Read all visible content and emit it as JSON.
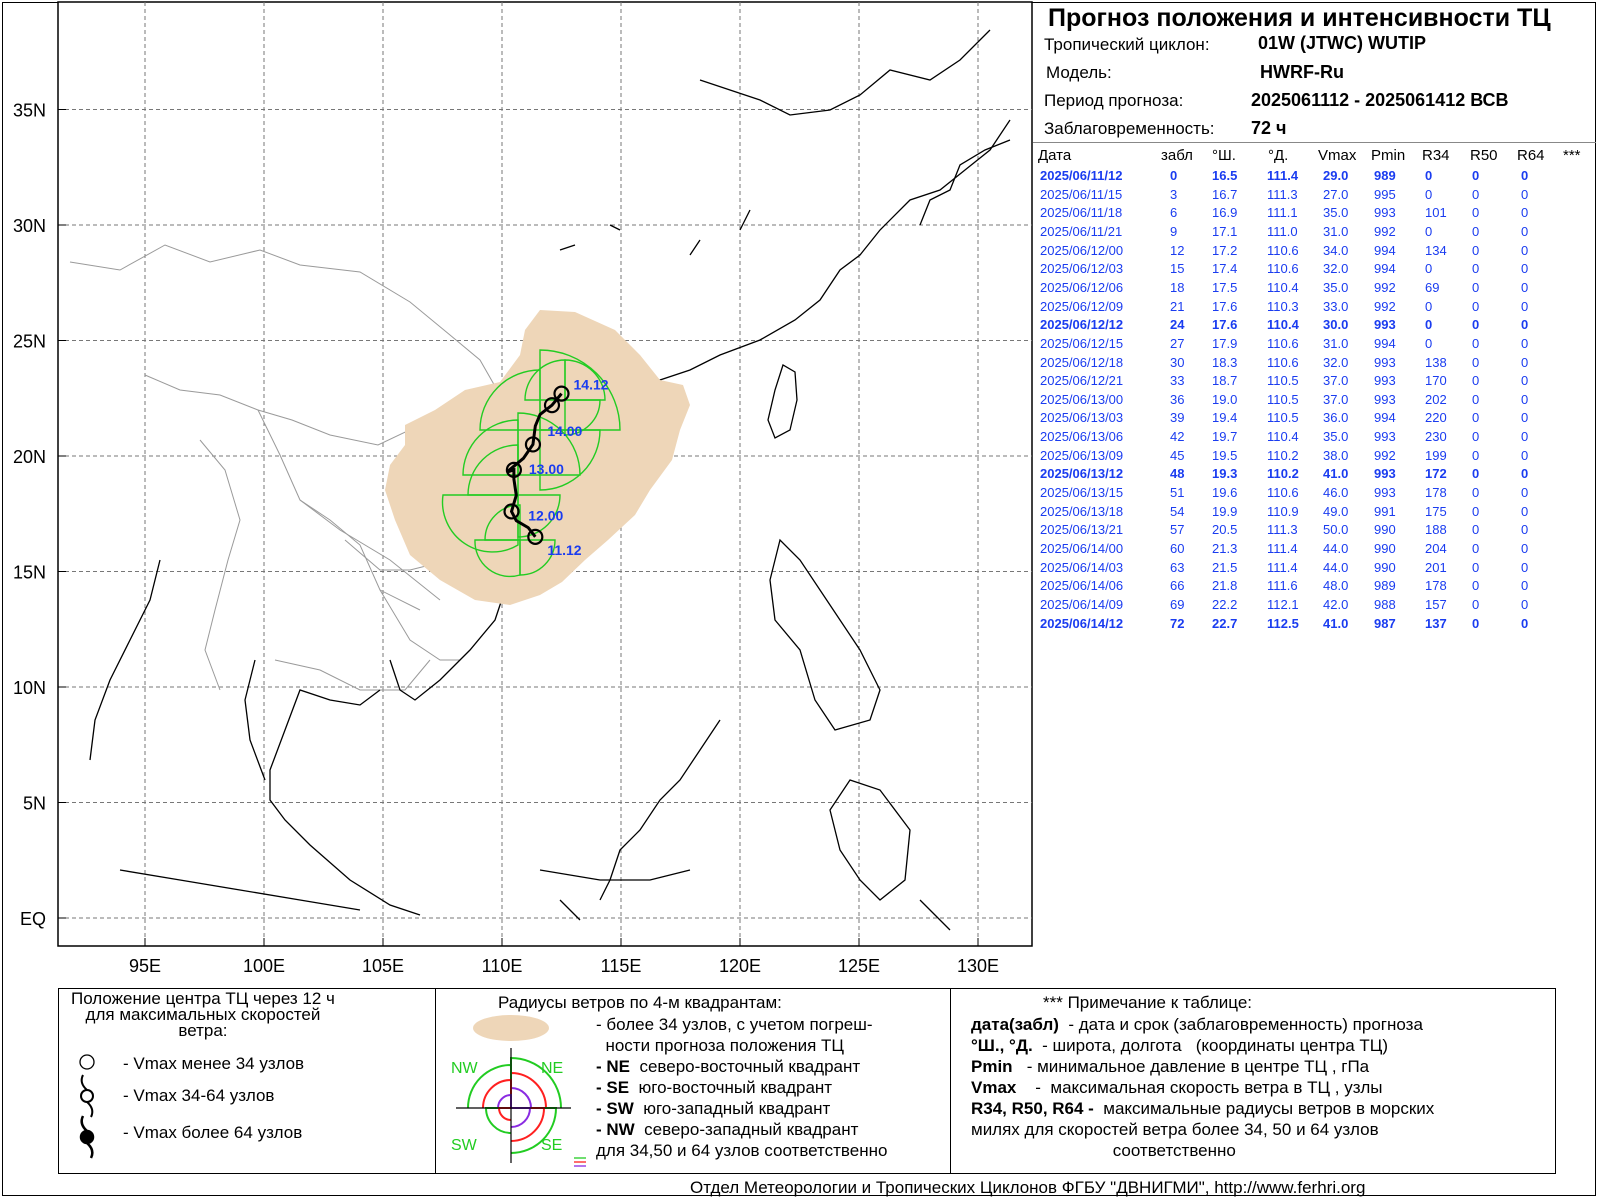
{
  "header": {
    "title": "Прогноз положения и интенсивности ТЦ",
    "cyclone_label": "Тропический циклон:",
    "cyclone_value": "01W (JTWC)  WUTIP",
    "model_label": "Модель:",
    "model_value": "HWRF-Ru",
    "period_label": "Период прогноза:",
    "period_value": "2025061112 - 2025061412 ВСВ",
    "lead_label": "Заблаговременность:",
    "lead_value": "72 ч"
  },
  "table": {
    "columns": [
      "Дата",
      "забл",
      "°Ш.",
      "°Д.",
      "Vmax",
      "Pmin",
      "R34",
      "R50",
      "R64",
      "***"
    ],
    "rows": [
      {
        "date": "2025/06/11/12",
        "lead": "0",
        "lat": "16.5",
        "lon": "111.4",
        "vmax": "29.0",
        "pmin": "989",
        "r34": "0",
        "r50": "0",
        "r64": "0",
        "bold": true
      },
      {
        "date": "2025/06/11/15",
        "lead": "3",
        "lat": "16.7",
        "lon": "111.3",
        "vmax": "27.0",
        "pmin": "995",
        "r34": "0",
        "r50": "0",
        "r64": "0",
        "bold": false
      },
      {
        "date": "2025/06/11/18",
        "lead": "6",
        "lat": "16.9",
        "lon": "111.1",
        "vmax": "35.0",
        "pmin": "993",
        "r34": "101",
        "r50": "0",
        "r64": "0",
        "bold": false
      },
      {
        "date": "2025/06/11/21",
        "lead": "9",
        "lat": "17.1",
        "lon": "111.0",
        "vmax": "31.0",
        "pmin": "992",
        "r34": "0",
        "r50": "0",
        "r64": "0",
        "bold": false
      },
      {
        "date": "2025/06/12/00",
        "lead": "12",
        "lat": "17.2",
        "lon": "110.6",
        "vmax": "34.0",
        "pmin": "994",
        "r34": "134",
        "r50": "0",
        "r64": "0",
        "bold": false
      },
      {
        "date": "2025/06/12/03",
        "lead": "15",
        "lat": "17.4",
        "lon": "110.6",
        "vmax": "32.0",
        "pmin": "994",
        "r34": "0",
        "r50": "0",
        "r64": "0",
        "bold": false
      },
      {
        "date": "2025/06/12/06",
        "lead": "18",
        "lat": "17.5",
        "lon": "110.4",
        "vmax": "35.0",
        "pmin": "992",
        "r34": "69",
        "r50": "0",
        "r64": "0",
        "bold": false
      },
      {
        "date": "2025/06/12/09",
        "lead": "21",
        "lat": "17.6",
        "lon": "110.3",
        "vmax": "33.0",
        "pmin": "992",
        "r34": "0",
        "r50": "0",
        "r64": "0",
        "bold": false
      },
      {
        "date": "2025/06/12/12",
        "lead": "24",
        "lat": "17.6",
        "lon": "110.4",
        "vmax": "30.0",
        "pmin": "993",
        "r34": "0",
        "r50": "0",
        "r64": "0",
        "bold": true
      },
      {
        "date": "2025/06/12/15",
        "lead": "27",
        "lat": "17.9",
        "lon": "110.6",
        "vmax": "31.0",
        "pmin": "994",
        "r34": "0",
        "r50": "0",
        "r64": "0",
        "bold": false
      },
      {
        "date": "2025/06/12/18",
        "lead": "30",
        "lat": "18.3",
        "lon": "110.6",
        "vmax": "32.0",
        "pmin": "993",
        "r34": "138",
        "r50": "0",
        "r64": "0",
        "bold": false
      },
      {
        "date": "2025/06/12/21",
        "lead": "33",
        "lat": "18.7",
        "lon": "110.5",
        "vmax": "37.0",
        "pmin": "993",
        "r34": "170",
        "r50": "0",
        "r64": "0",
        "bold": false
      },
      {
        "date": "2025/06/13/00",
        "lead": "36",
        "lat": "19.0",
        "lon": "110.5",
        "vmax": "37.0",
        "pmin": "993",
        "r34": "202",
        "r50": "0",
        "r64": "0",
        "bold": false
      },
      {
        "date": "2025/06/13/03",
        "lead": "39",
        "lat": "19.4",
        "lon": "110.5",
        "vmax": "36.0",
        "pmin": "994",
        "r34": "220",
        "r50": "0",
        "r64": "0",
        "bold": false
      },
      {
        "date": "2025/06/13/06",
        "lead": "42",
        "lat": "19.7",
        "lon": "110.4",
        "vmax": "35.0",
        "pmin": "993",
        "r34": "230",
        "r50": "0",
        "r64": "0",
        "bold": false
      },
      {
        "date": "2025/06/13/09",
        "lead": "45",
        "lat": "19.5",
        "lon": "110.2",
        "vmax": "38.0",
        "pmin": "992",
        "r34": "199",
        "r50": "0",
        "r64": "0",
        "bold": false
      },
      {
        "date": "2025/06/13/12",
        "lead": "48",
        "lat": "19.3",
        "lon": "110.2",
        "vmax": "41.0",
        "pmin": "993",
        "r34": "172",
        "r50": "0",
        "r64": "0",
        "bold": true
      },
      {
        "date": "2025/06/13/15",
        "lead": "51",
        "lat": "19.6",
        "lon": "110.6",
        "vmax": "46.0",
        "pmin": "993",
        "r34": "178",
        "r50": "0",
        "r64": "0",
        "bold": false
      },
      {
        "date": "2025/06/13/18",
        "lead": "54",
        "lat": "19.9",
        "lon": "110.9",
        "vmax": "49.0",
        "pmin": "991",
        "r34": "175",
        "r50": "0",
        "r64": "0",
        "bold": false
      },
      {
        "date": "2025/06/13/21",
        "lead": "57",
        "lat": "20.5",
        "lon": "111.3",
        "vmax": "50.0",
        "pmin": "990",
        "r34": "188",
        "r50": "0",
        "r64": "0",
        "bold": false
      },
      {
        "date": "2025/06/14/00",
        "lead": "60",
        "lat": "21.3",
        "lon": "111.4",
        "vmax": "44.0",
        "pmin": "990",
        "r34": "204",
        "r50": "0",
        "r64": "0",
        "bold": false
      },
      {
        "date": "2025/06/14/03",
        "lead": "63",
        "lat": "21.5",
        "lon": "111.4",
        "vmax": "44.0",
        "pmin": "990",
        "r34": "201",
        "r50": "0",
        "r64": "0",
        "bold": false
      },
      {
        "date": "2025/06/14/06",
        "lead": "66",
        "lat": "21.8",
        "lon": "111.6",
        "vmax": "48.0",
        "pmin": "989",
        "r34": "178",
        "r50": "0",
        "r64": "0",
        "bold": false
      },
      {
        "date": "2025/06/14/09",
        "lead": "69",
        "lat": "22.2",
        "lon": "112.1",
        "vmax": "42.0",
        "pmin": "988",
        "r34": "157",
        "r50": "0",
        "r64": "0",
        "bold": false
      },
      {
        "date": "2025/06/14/12",
        "lead": "72",
        "lat": "22.7",
        "lon": "112.5",
        "vmax": "41.0",
        "pmin": "987",
        "r34": "137",
        "r50": "0",
        "r64": "0",
        "bold": true
      }
    ]
  },
  "map": {
    "lat_labels": [
      "35N",
      "30N",
      "25N",
      "20N",
      "15N",
      "10N",
      "5N",
      "EQ"
    ],
    "lat_values": [
      35,
      30,
      25,
      20,
      15,
      10,
      5,
      0
    ],
    "lon_labels": [
      "95E",
      "100E",
      "105E",
      "110E",
      "115E",
      "120E",
      "125E",
      "130E"
    ],
    "lon_values": [
      95,
      100,
      105,
      110,
      115,
      120,
      125,
      130
    ],
    "track_labels": [
      "11.12",
      "12.00",
      "13.00",
      "14.00",
      "14.12"
    ],
    "track_points": [
      {
        "lat": 16.5,
        "lon": 111.4
      },
      {
        "lat": 16.9,
        "lon": 111.1
      },
      {
        "lat": 17.2,
        "lon": 110.6
      },
      {
        "lat": 17.6,
        "lon": 110.4
      },
      {
        "lat": 18.3,
        "lon": 110.6
      },
      {
        "lat": 19.0,
        "lon": 110.5
      },
      {
        "lat": 19.4,
        "lon": 110.5
      },
      {
        "lat": 19.3,
        "lon": 110.2
      },
      {
        "lat": 19.9,
        "lon": 110.9
      },
      {
        "lat": 20.5,
        "lon": 111.3
      },
      {
        "lat": 21.3,
        "lon": 111.4
      },
      {
        "lat": 21.8,
        "lon": 111.6
      },
      {
        "lat": 22.2,
        "lon": 112.1
      },
      {
        "lat": 22.7,
        "lon": 112.5
      }
    ],
    "colors": {
      "uncertainty": "#eed6b8",
      "wind_radius": "#22cc22",
      "track": "#000000",
      "labels": "#1a3cf0",
      "land": "#000000",
      "borders": "#9a9a9a",
      "grid": "#777777"
    }
  },
  "legend": {
    "sec1_title": "Положение центра ТЦ через 12 ч\nдля максимальных скоростей\nветра:",
    "sec1_items": [
      "- Vmax  менее 34 узлов",
      "- Vmax  34-64 узлов",
      "- Vmax  более 64 узлов"
    ],
    "sec2_title": "Радиусы ветров по 4-м квадрантам:",
    "sec2_lines": [
      {
        "k": "",
        "t": "- более 34 узлов, с учетом погреш-"
      },
      {
        "k": "",
        "t": "  ности прогноза положения ТЦ"
      },
      {
        "k": "- NE",
        "t": "  северо-восточный квадрант"
      },
      {
        "k": "- SE",
        "t": "  юго-восточный квадрант"
      },
      {
        "k": "- SW",
        "t": "  юго-западный квадрант"
      },
      {
        "k": "- NW",
        "t": "  северо-западный квадрант"
      },
      {
        "k": "",
        "t": "для 34,50 и 64 узлов соответственно"
      }
    ],
    "quad_labels": [
      "NW",
      "NE",
      "SW",
      "SE"
    ],
    "sec3_title": "*** Примечание к таблице:",
    "sec3_lines": [
      {
        "k": "дата(забл)",
        "t": "  - дата и срок (заблаговременность) прогноза"
      },
      {
        "k": "°Ш., °Д.",
        "t": "  - широта, долгота   (координаты центра ТЦ)"
      },
      {
        "k": "Pmin",
        "t": "   - минимальное давление в центре ТЦ , гПа"
      },
      {
        "k": "Vmax",
        "t": "    -  максимальная скорость ветра в ТЦ , узлы"
      },
      {
        "k": "R34, R50, R64 -",
        "t": "  максимальные радиусы ветров в морских"
      },
      {
        "k": "",
        "t": "милях для скоростей ветра более 34, 50 и 64 узлов"
      },
      {
        "k": "",
        "t": "                              соответственно"
      }
    ]
  },
  "footer": "Отдел Метеорологии и Тропических Циклонов ФГБУ \"ДВНИГМИ\",  http://www.ferhri.org"
}
